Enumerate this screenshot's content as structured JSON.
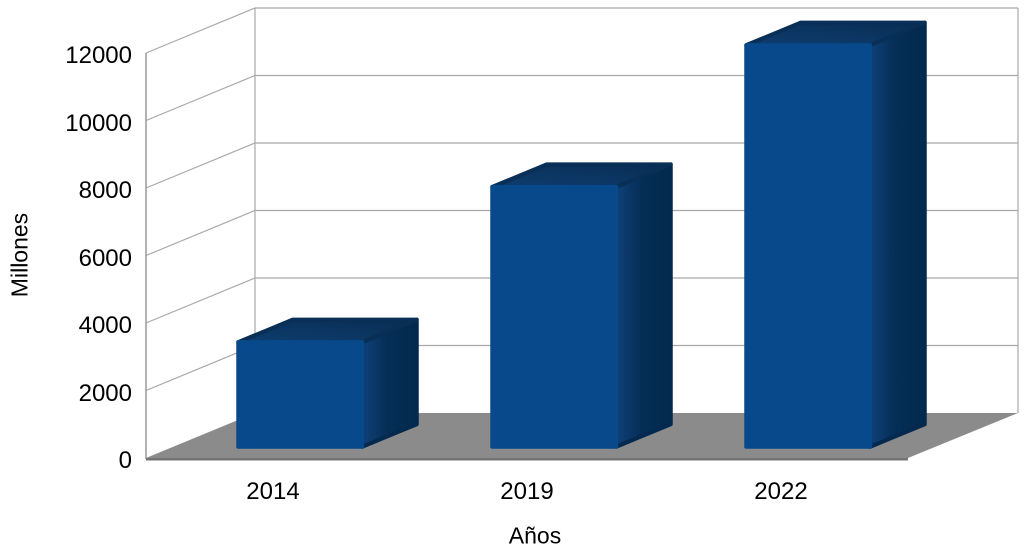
{
  "chart_data": {
    "type": "bar",
    "projection": "3d",
    "categories": [
      "2014",
      "2019",
      "2022"
    ],
    "values": [
      3100,
      7700,
      11900
    ],
    "xlabel": "Años",
    "ylabel": "Millones",
    "ylim": [
      0,
      12000
    ],
    "ytick_step": 2000,
    "yticks": [
      0,
      2000,
      4000,
      6000,
      8000,
      10000,
      12000
    ],
    "grid": true,
    "legend": false,
    "colors": {
      "bar_front": "#07498b",
      "bar_side_light": "#104179",
      "bar_side_mid": "#052e57",
      "bar_side_dark": "#04294e",
      "bar_top_light": "#0e3d6f",
      "bar_top_dark": "#092f57",
      "floor": "#8b8b8b",
      "floor_edge": "#747474",
      "gridline": "#a9a9a9",
      "axis_line": "#999999",
      "text": "#000000",
      "background": "#ffffff"
    }
  },
  "labels": {
    "yticks": [
      "0",
      "2000",
      "4000",
      "6000",
      "8000",
      "10000",
      "12000"
    ],
    "categories": [
      "2014",
      "2019",
      "2022"
    ],
    "xlabel": "Años",
    "ylabel": "Millones"
  }
}
